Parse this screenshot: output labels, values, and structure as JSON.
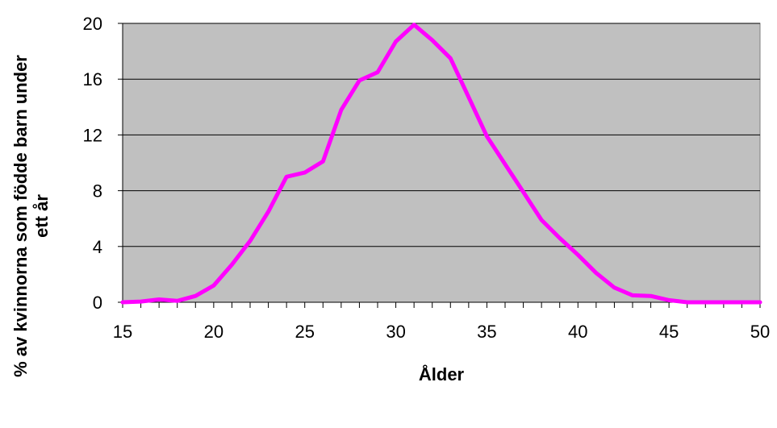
{
  "chart_data": {
    "type": "line",
    "title": "",
    "xlabel": "Ålder",
    "ylabel_line1": "% av kvinnorna som födde barn under",
    "ylabel_line2": "ett år",
    "xlim": [
      15,
      50
    ],
    "ylim": [
      0,
      20
    ],
    "x_ticks": [
      15,
      20,
      25,
      30,
      35,
      40,
      45,
      50
    ],
    "y_ticks": [
      0,
      4,
      8,
      12,
      16,
      20
    ],
    "grid": "horizontal",
    "plot_background": "#c0c0c0",
    "line_color": "#ff00ff",
    "gridline_color": "#000000",
    "series": [
      {
        "x": [
          15,
          16,
          17,
          18,
          19,
          20,
          21,
          22,
          23,
          24,
          25,
          26,
          27,
          28,
          29,
          30,
          31,
          32,
          33,
          34,
          35,
          36,
          37,
          38,
          39,
          40,
          41,
          42,
          43,
          44,
          45,
          46,
          47,
          48,
          49,
          50
        ],
        "values": [
          0,
          0.05,
          0.2,
          0.1,
          0.45,
          1.2,
          2.7,
          4.4,
          6.5,
          9,
          9.3,
          10.1,
          13.8,
          15.9,
          16.5,
          18.7,
          19.9,
          18.8,
          17.5,
          14.7,
          11.9,
          9.9,
          7.9,
          5.9,
          4.6,
          3.4,
          2.1,
          1.05,
          0.5,
          0.45,
          0.15,
          0,
          0,
          0,
          0,
          0
        ]
      }
    ]
  }
}
